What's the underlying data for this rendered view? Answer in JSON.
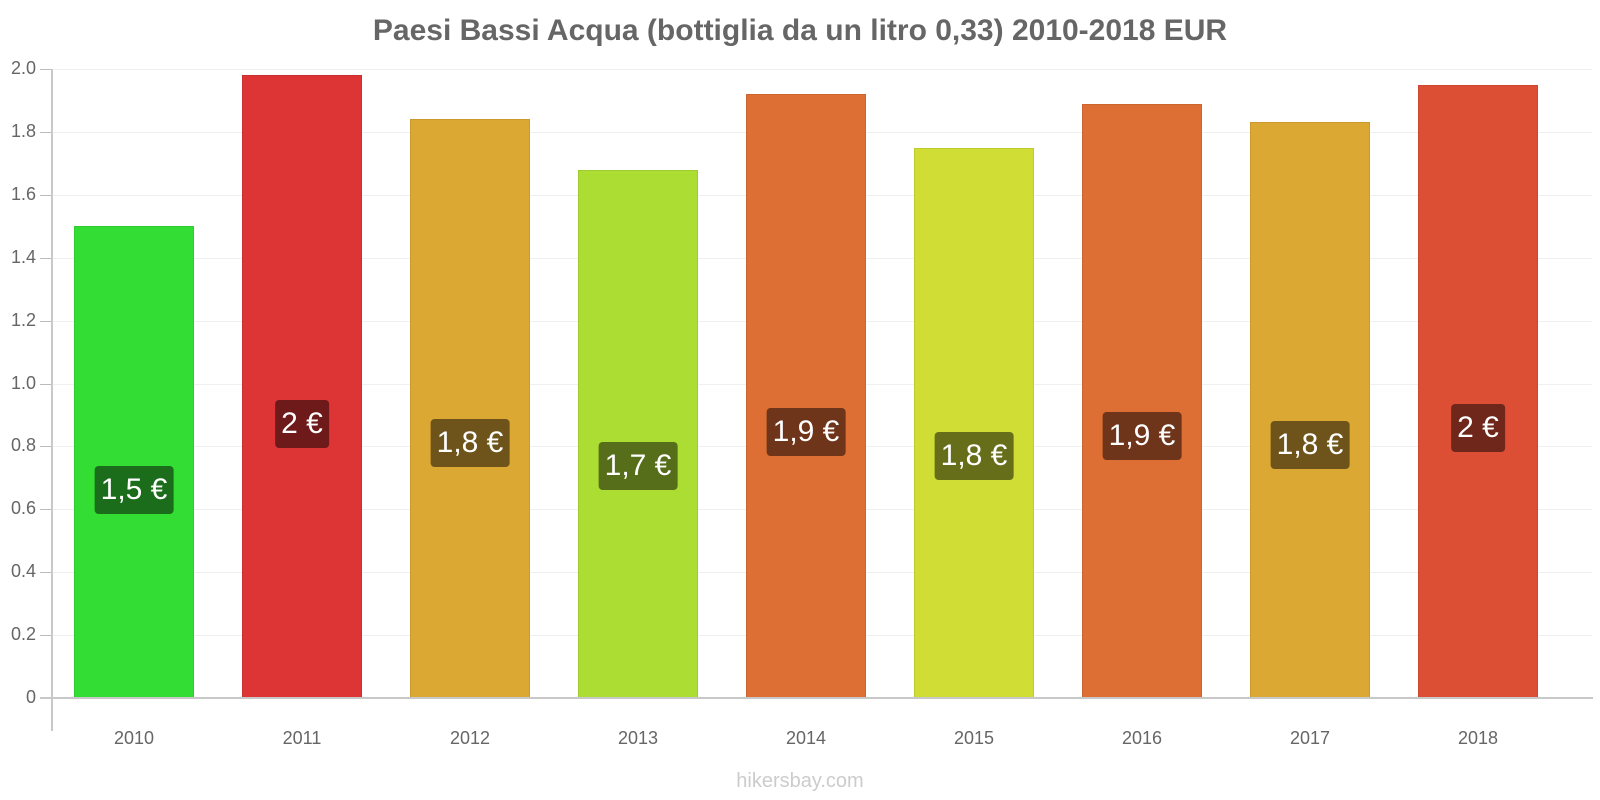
{
  "chart_data": {
    "type": "bar",
    "title": "Paesi Bassi Acqua (bottiglia da un litro 0,33) 2010-2018 EUR",
    "xlabel": "",
    "ylabel": "",
    "ylim": [
      0,
      2.0
    ],
    "yticks": [
      "0",
      "0.2",
      "0.4",
      "0.6",
      "0.8",
      "1.0",
      "1.2",
      "1.4",
      "1.6",
      "1.8",
      "2.0"
    ],
    "grid": true,
    "legend": null,
    "categories": [
      "2010",
      "2011",
      "2012",
      "2013",
      "2014",
      "2015",
      "2016",
      "2017",
      "2018"
    ],
    "values": [
      1.5,
      1.98,
      1.84,
      1.68,
      1.92,
      1.75,
      1.89,
      1.83,
      1.95
    ],
    "data_labels": [
      "1,5 €",
      "2 €",
      "1,8 €",
      "1,7 €",
      "1,9 €",
      "1,8 €",
      "1,9 €",
      "1,8 €",
      "2 €"
    ],
    "bar_colors": [
      "#33dd33",
      "#dd3535",
      "#dca834",
      "#acdd33",
      "#dd6f34",
      "#cfdd34",
      "#dd6f34",
      "#dca834",
      "#dd4f35"
    ],
    "label_bg_colors": [
      "#1b6d1b",
      "#6e1a1a",
      "#6e541a",
      "#566e1a",
      "#6e351a",
      "#676e1a",
      "#6e351a",
      "#6e541a",
      "#6e271a"
    ]
  },
  "watermark": "hikersbay.com"
}
